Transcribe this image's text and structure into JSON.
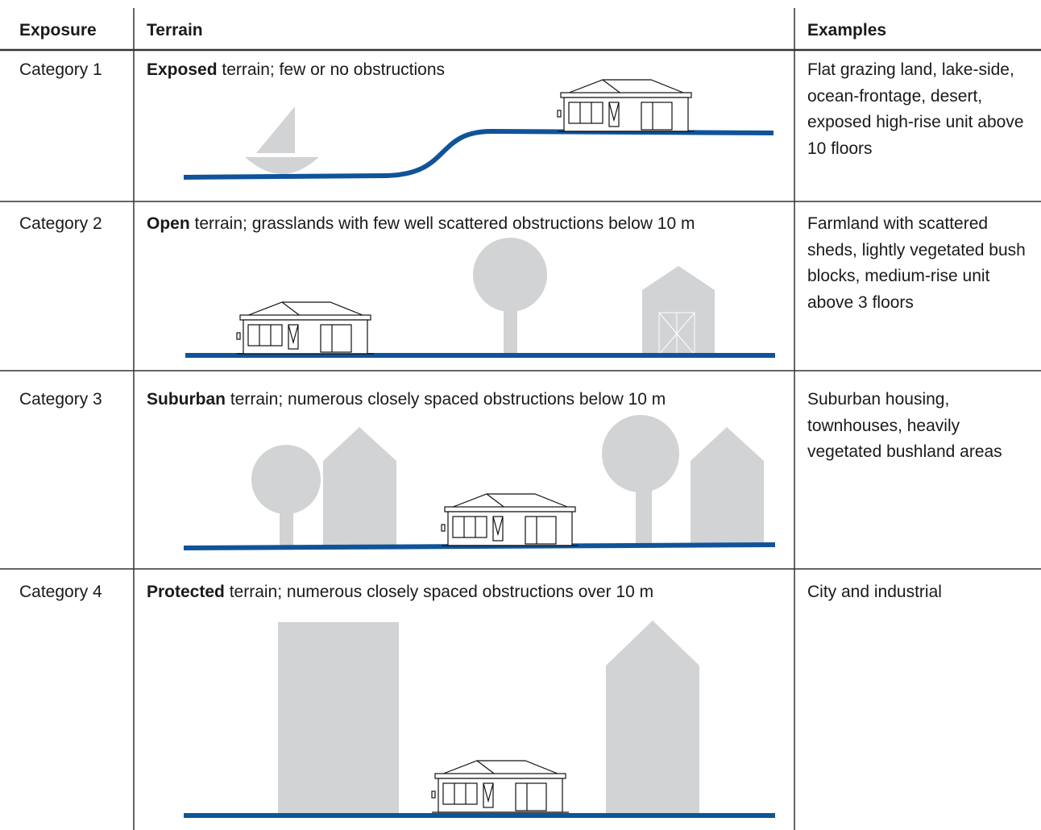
{
  "header": {
    "exposure": "Exposure",
    "terrain": "Terrain",
    "examples": "Examples"
  },
  "rows": [
    {
      "exposure": "Category 1",
      "terrain_bold": "Exposed",
      "terrain_rest": " terrain; few or no obstructions",
      "examples": "Flat grazing land, lake-side, ocean-frontage, desert, exposed high-rise unit above 10 floors"
    },
    {
      "exposure": "Category 2",
      "terrain_bold": "Open",
      "terrain_rest": " terrain; grasslands with few well scattered obstructions below 10 m",
      "examples": "Farmland with scattered sheds, lightly vegetated bush blocks, medium-rise unit above 3 floors"
    },
    {
      "exposure": "Category 3",
      "terrain_bold": "Suburban",
      "terrain_rest": " terrain; numerous closely spaced obstructions below 10 m",
      "examples": "Suburban housing, townhouses, heavily vegetated bushland areas"
    },
    {
      "exposure": "Category 4",
      "terrain_bold": "Protected",
      "terrain_rest": " terrain; numerous closely spaced obstructions over 10 m",
      "examples": "City and industrial"
    }
  ]
}
